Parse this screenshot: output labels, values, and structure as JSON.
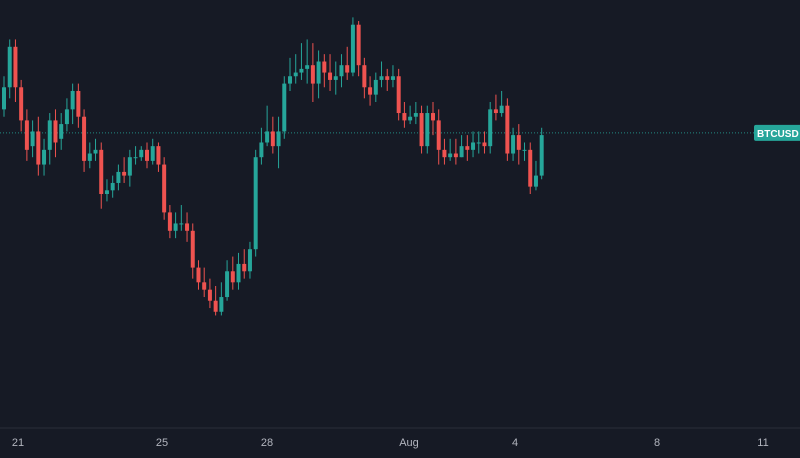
{
  "colors": {
    "background": "#161a25",
    "up": "#26a69a",
    "down": "#ef5350",
    "last_price_line": "#26a69a",
    "badge_bg": "#26a69a",
    "axis_text": "#b2b5be",
    "axis_line": "#2a2e39"
  },
  "chart_data": {
    "type": "candlestick",
    "symbol_label": "BTCUSD",
    "x_ticks": [
      "21",
      "25",
      "28",
      "Aug",
      "4",
      "8",
      "11"
    ],
    "ylim": [
      0,
      100
    ],
    "y_axis_labels_visible": false,
    "grid": false,
    "last_price": 66.6,
    "candles": [
      {
        "o": 73,
        "c": 79,
        "h": 82,
        "l": 71
      },
      {
        "o": 79,
        "c": 90,
        "h": 92,
        "l": 76
      },
      {
        "o": 90,
        "c": 79,
        "h": 92,
        "l": 75
      },
      {
        "o": 79,
        "c": 70,
        "h": 81,
        "l": 67
      },
      {
        "o": 70,
        "c": 62,
        "h": 73,
        "l": 59
      },
      {
        "o": 63,
        "c": 67,
        "h": 70,
        "l": 60
      },
      {
        "o": 67,
        "c": 58,
        "h": 71,
        "l": 55
      },
      {
        "o": 58,
        "c": 62,
        "h": 65,
        "l": 55
      },
      {
        "o": 62,
        "c": 70,
        "h": 72,
        "l": 58
      },
      {
        "o": 70,
        "c": 64,
        "h": 73,
        "l": 60
      },
      {
        "o": 65,
        "c": 69,
        "h": 72,
        "l": 62
      },
      {
        "o": 69,
        "c": 73,
        "h": 76,
        "l": 67
      },
      {
        "o": 73,
        "c": 78,
        "h": 80,
        "l": 69
      },
      {
        "o": 78,
        "c": 71,
        "h": 80,
        "l": 68
      },
      {
        "o": 71,
        "c": 59,
        "h": 73,
        "l": 56
      },
      {
        "o": 59,
        "c": 61,
        "h": 64,
        "l": 57
      },
      {
        "o": 61,
        "c": 62,
        "h": 65,
        "l": 59
      },
      {
        "o": 62,
        "c": 50,
        "h": 64,
        "l": 46
      },
      {
        "o": 50,
        "c": 51,
        "h": 54,
        "l": 48
      },
      {
        "o": 51,
        "c": 53,
        "h": 55,
        "l": 49
      },
      {
        "o": 53,
        "c": 56,
        "h": 58,
        "l": 51
      },
      {
        "o": 56,
        "c": 55,
        "h": 60,
        "l": 53
      },
      {
        "o": 55,
        "c": 60,
        "h": 62,
        "l": 52
      },
      {
        "o": 60,
        "c": 60,
        "h": 63,
        "l": 58
      },
      {
        "o": 60,
        "c": 62,
        "h": 63,
        "l": 59
      },
      {
        "o": 62,
        "c": 59,
        "h": 64,
        "l": 57
      },
      {
        "o": 59,
        "c": 63,
        "h": 65,
        "l": 58
      },
      {
        "o": 63,
        "c": 58,
        "h": 64,
        "l": 56
      },
      {
        "o": 58,
        "c": 45,
        "h": 60,
        "l": 43
      },
      {
        "o": 45,
        "c": 40,
        "h": 47,
        "l": 38
      },
      {
        "o": 40,
        "c": 42,
        "h": 45,
        "l": 38
      },
      {
        "o": 42,
        "c": 42,
        "h": 47,
        "l": 40
      },
      {
        "o": 42,
        "c": 40,
        "h": 45,
        "l": 37
      },
      {
        "o": 40,
        "c": 30,
        "h": 42,
        "l": 27
      },
      {
        "o": 30,
        "c": 26,
        "h": 32,
        "l": 24
      },
      {
        "o": 26,
        "c": 24,
        "h": 30,
        "l": 22
      },
      {
        "o": 24,
        "c": 21,
        "h": 27,
        "l": 19
      },
      {
        "o": 21,
        "c": 18,
        "h": 25,
        "l": 17
      },
      {
        "o": 18,
        "c": 22,
        "h": 26,
        "l": 17
      },
      {
        "o": 22,
        "c": 29,
        "h": 32,
        "l": 21
      },
      {
        "o": 29,
        "c": 26,
        "h": 33,
        "l": 24
      },
      {
        "o": 26,
        "c": 31,
        "h": 34,
        "l": 24
      },
      {
        "o": 31,
        "c": 29,
        "h": 35,
        "l": 27
      },
      {
        "o": 29,
        "c": 35,
        "h": 37,
        "l": 27
      },
      {
        "o": 35,
        "c": 60,
        "h": 62,
        "l": 33
      },
      {
        "o": 60,
        "c": 64,
        "h": 68,
        "l": 58
      },
      {
        "o": 64,
        "c": 67,
        "h": 74,
        "l": 63
      },
      {
        "o": 67,
        "c": 63,
        "h": 71,
        "l": 61
      },
      {
        "o": 63,
        "c": 67,
        "h": 71,
        "l": 57
      },
      {
        "o": 67,
        "c": 80,
        "h": 82,
        "l": 65
      },
      {
        "o": 80,
        "c": 82,
        "h": 87,
        "l": 78
      },
      {
        "o": 82,
        "c": 83,
        "h": 88,
        "l": 80
      },
      {
        "o": 83,
        "c": 84,
        "h": 91,
        "l": 81
      },
      {
        "o": 84,
        "c": 85,
        "h": 92,
        "l": 80
      },
      {
        "o": 85,
        "c": 80,
        "h": 91,
        "l": 75
      },
      {
        "o": 80,
        "c": 86,
        "h": 89,
        "l": 76
      },
      {
        "o": 86,
        "c": 83,
        "h": 88,
        "l": 79
      },
      {
        "o": 83,
        "c": 81,
        "h": 88,
        "l": 78
      },
      {
        "o": 81,
        "c": 82,
        "h": 86,
        "l": 77
      },
      {
        "o": 82,
        "c": 85,
        "h": 88,
        "l": 79
      },
      {
        "o": 85,
        "c": 83,
        "h": 90,
        "l": 81
      },
      {
        "o": 83,
        "c": 96,
        "h": 98,
        "l": 82
      },
      {
        "o": 96,
        "c": 85,
        "h": 97,
        "l": 82
      },
      {
        "o": 85,
        "c": 79,
        "h": 87,
        "l": 76
      },
      {
        "o": 79,
        "c": 77,
        "h": 82,
        "l": 74
      },
      {
        "o": 77,
        "c": 81,
        "h": 83,
        "l": 75
      },
      {
        "o": 81,
        "c": 82,
        "h": 86,
        "l": 79
      },
      {
        "o": 82,
        "c": 81,
        "h": 84,
        "l": 78
      },
      {
        "o": 81,
        "c": 82,
        "h": 85,
        "l": 79
      },
      {
        "o": 82,
        "c": 72,
        "h": 84,
        "l": 70
      },
      {
        "o": 72,
        "c": 70,
        "h": 75,
        "l": 68
      },
      {
        "o": 70,
        "c": 71,
        "h": 74,
        "l": 69
      },
      {
        "o": 71,
        "c": 72,
        "h": 75,
        "l": 69
      },
      {
        "o": 72,
        "c": 63,
        "h": 74,
        "l": 61
      },
      {
        "o": 63,
        "c": 72,
        "h": 74,
        "l": 61
      },
      {
        "o": 72,
        "c": 70,
        "h": 75,
        "l": 66
      },
      {
        "o": 70,
        "c": 62,
        "h": 73,
        "l": 58
      },
      {
        "o": 62,
        "c": 60,
        "h": 65,
        "l": 58
      },
      {
        "o": 60,
        "c": 61,
        "h": 65,
        "l": 59
      },
      {
        "o": 61,
        "c": 60,
        "h": 65,
        "l": 58
      },
      {
        "o": 60,
        "c": 63,
        "h": 66,
        "l": 60
      },
      {
        "o": 63,
        "c": 62,
        "h": 66,
        "l": 59
      },
      {
        "o": 62,
        "c": 64,
        "h": 67,
        "l": 60
      },
      {
        "o": 64,
        "c": 64,
        "h": 67,
        "l": 61
      },
      {
        "o": 64,
        "c": 63,
        "h": 67,
        "l": 61
      },
      {
        "o": 63,
        "c": 73,
        "h": 75,
        "l": 61
      },
      {
        "o": 73,
        "c": 72,
        "h": 77,
        "l": 70
      },
      {
        "o": 72,
        "c": 74,
        "h": 78,
        "l": 71
      },
      {
        "o": 74,
        "c": 61,
        "h": 76,
        "l": 59
      },
      {
        "o": 61,
        "c": 66,
        "h": 68,
        "l": 59
      },
      {
        "o": 66,
        "c": 62,
        "h": 69,
        "l": 58
      },
      {
        "o": 62,
        "c": 62,
        "h": 64,
        "l": 59
      },
      {
        "o": 62,
        "c": 52,
        "h": 64,
        "l": 50
      },
      {
        "o": 52,
        "c": 55,
        "h": 59,
        "l": 51
      },
      {
        "o": 55,
        "c": 66,
        "h": 68,
        "l": 54
      }
    ]
  }
}
